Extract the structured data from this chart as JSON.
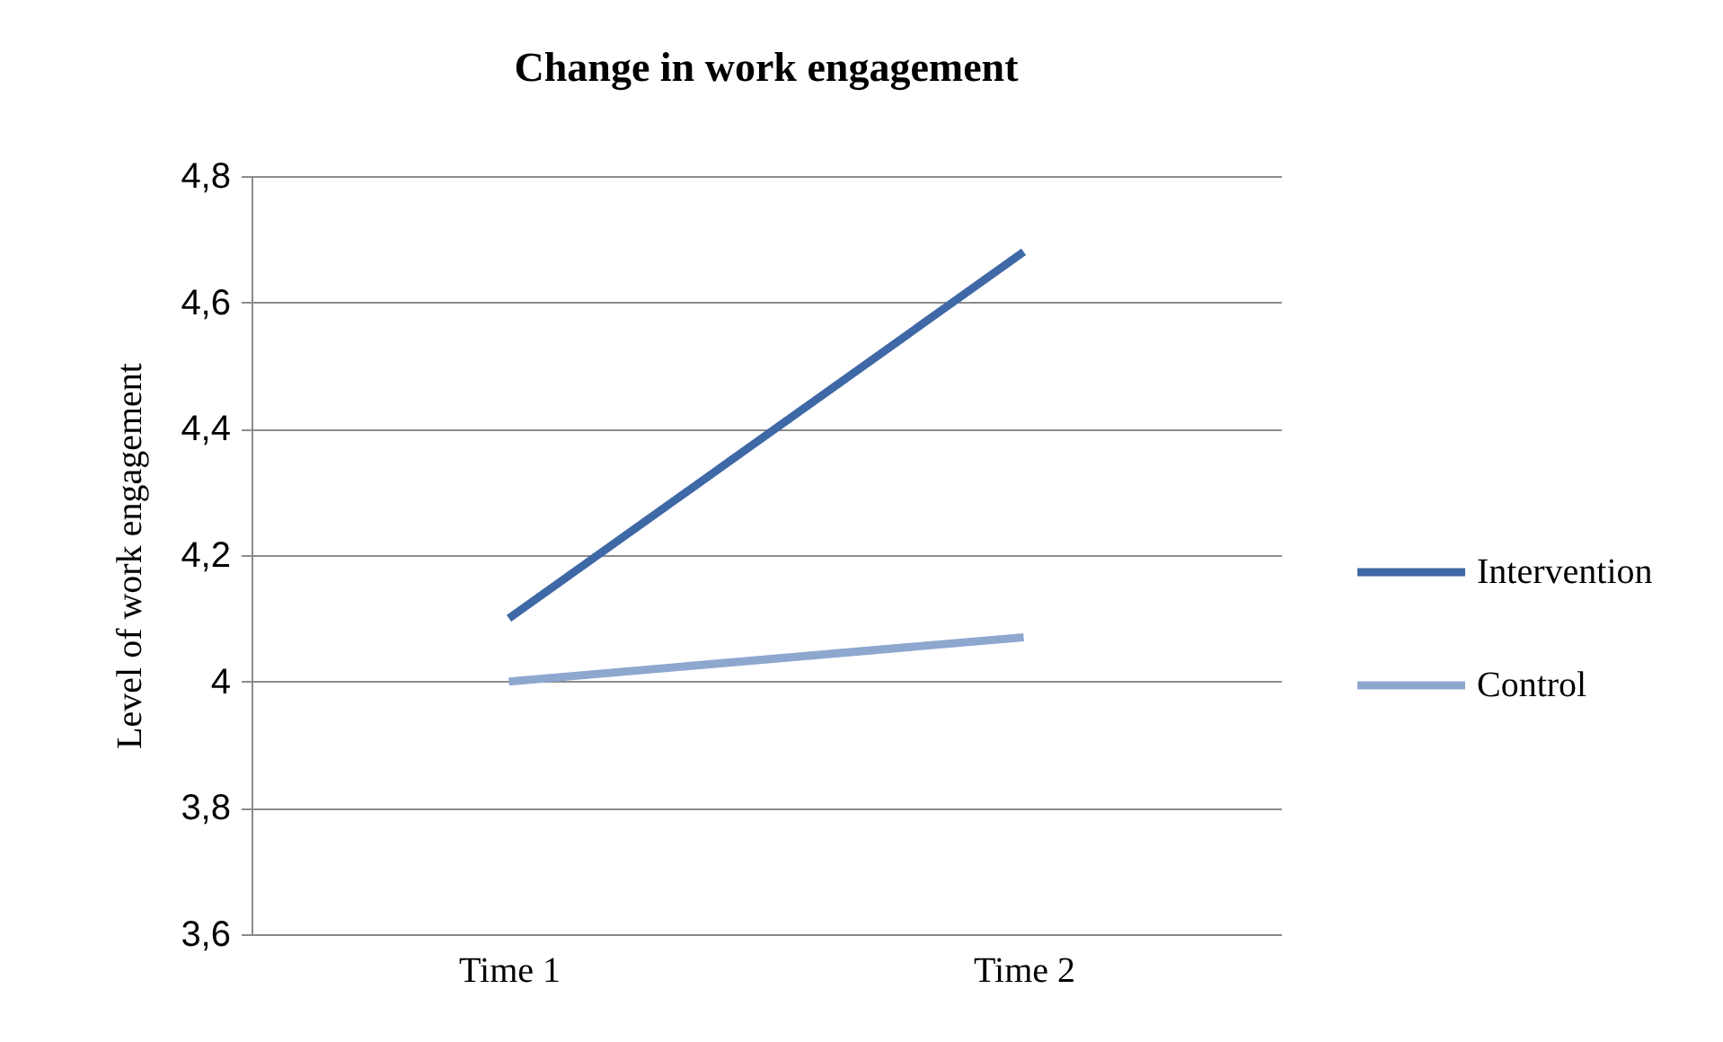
{
  "chart_data": {
    "type": "line",
    "title": "Change in work engagement",
    "ylabel": "Level of work engagement",
    "categories": [
      "Time 1",
      "Time 2"
    ],
    "series": [
      {
        "name": "Intervention",
        "color": "#3f68a6",
        "values": [
          4.1,
          4.68
        ]
      },
      {
        "name": "Control",
        "color": "#8ea7cf",
        "values": [
          4.0,
          4.07
        ]
      }
    ],
    "ylim": [
      3.6,
      4.8
    ],
    "yticks": [
      {
        "value": 3.6,
        "label": "3,6"
      },
      {
        "value": 3.8,
        "label": "3,8"
      },
      {
        "value": 4,
        "label": "4"
      },
      {
        "value": 4.2,
        "label": "4,2"
      },
      {
        "value": 4.4,
        "label": "4,4"
      },
      {
        "value": 4.6,
        "label": "4,6"
      },
      {
        "value": 4.8,
        "label": "4,8"
      }
    ],
    "grid": "y",
    "legend": "right"
  }
}
